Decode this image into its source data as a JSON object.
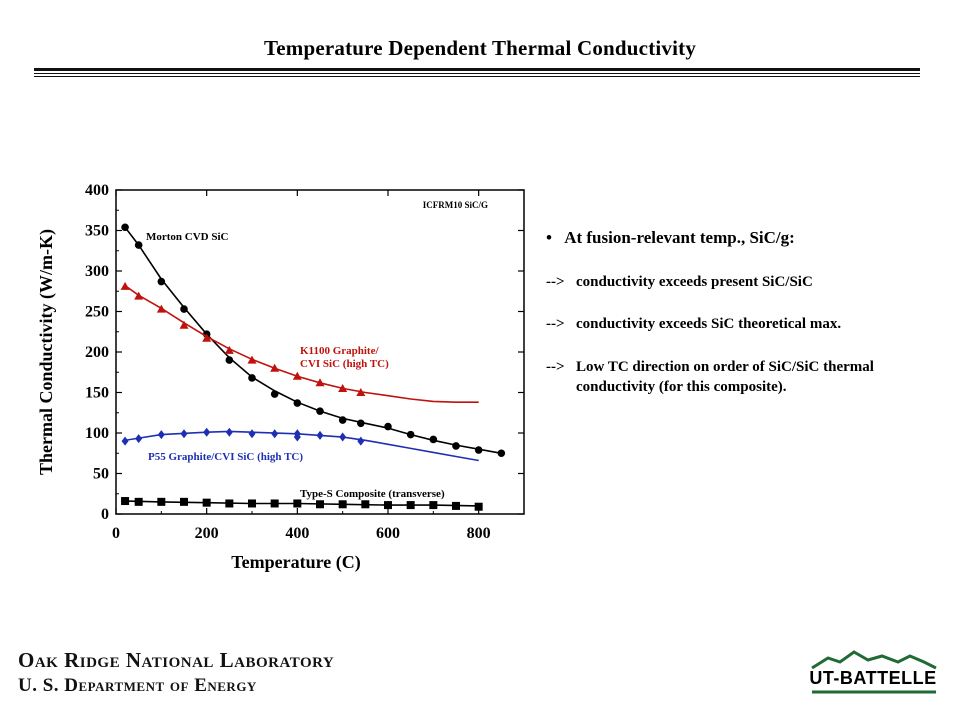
{
  "slide": {
    "title": "Temperature Dependent Thermal Conductivity",
    "bullet_marker": "•",
    "bullet_glyph": "",
    "bullet_main": "At fusion-relevant temp., SiC/g:",
    "arrow": "-->",
    "arrow_items": [
      "conductivity exceeds present SiC/SiC",
      "conductivity exceeds SiC theoretical max.",
      "Low TC direction on order of SiC/SiC thermal conductivity (for this composite)."
    ],
    "footer_line1": "Oak Ridge National Laboratory",
    "footer_line2": "U. S. Department of Energy",
    "logo_text": "UT-BATTELLE"
  },
  "chart_data": {
    "type": "line",
    "xlabel": "Temperature (C)",
    "ylabel": "Thermal Conductivity (W/m-K)",
    "xlim": [
      0,
      900
    ],
    "ylim": [
      0,
      400
    ],
    "xticks": [
      0,
      200,
      400,
      600,
      800
    ],
    "yticks": [
      0,
      50,
      100,
      150,
      200,
      250,
      300,
      350,
      400
    ],
    "corner_label": "ICFRM10 SiC/G",
    "grid": false,
    "series": [
      {
        "name": "Morton CVD SiC",
        "color": "#000000",
        "marker": "circle",
        "points": [
          [
            20,
            354
          ],
          [
            50,
            332
          ],
          [
            100,
            287
          ],
          [
            150,
            253
          ],
          [
            200,
            222
          ],
          [
            250,
            190
          ],
          [
            300,
            168
          ],
          [
            350,
            148
          ],
          [
            400,
            137
          ],
          [
            450,
            127
          ],
          [
            500,
            116
          ],
          [
            540,
            112
          ],
          [
            600,
            108
          ],
          [
            650,
            98
          ],
          [
            700,
            92
          ],
          [
            750,
            84
          ],
          [
            800,
            79
          ],
          [
            850,
            75
          ]
        ],
        "curve": [
          [
            20,
            354
          ],
          [
            50,
            332
          ],
          [
            100,
            290
          ],
          [
            150,
            255
          ],
          [
            200,
            222
          ],
          [
            250,
            193
          ],
          [
            300,
            169
          ],
          [
            350,
            152
          ],
          [
            400,
            138
          ],
          [
            450,
            127
          ],
          [
            500,
            118
          ],
          [
            550,
            112
          ],
          [
            600,
            106
          ],
          [
            650,
            98
          ],
          [
            700,
            91
          ],
          [
            750,
            85
          ],
          [
            800,
            80
          ],
          [
            850,
            75
          ]
        ]
      },
      {
        "name": "K1100 Graphite/ CVI SiC (high TC)",
        "color": "#c0120d",
        "marker": "triangle",
        "points": [
          [
            20,
            281
          ],
          [
            50,
            269
          ],
          [
            100,
            253
          ],
          [
            150,
            233
          ],
          [
            200,
            217
          ],
          [
            250,
            202
          ],
          [
            300,
            190
          ],
          [
            350,
            180
          ],
          [
            400,
            170
          ],
          [
            450,
            162
          ],
          [
            500,
            155
          ],
          [
            540,
            150
          ]
        ],
        "curve": [
          [
            20,
            282
          ],
          [
            50,
            270
          ],
          [
            100,
            254
          ],
          [
            150,
            236
          ],
          [
            200,
            219
          ],
          [
            250,
            204
          ],
          [
            300,
            191
          ],
          [
            350,
            180
          ],
          [
            400,
            170
          ],
          [
            450,
            162
          ],
          [
            500,
            155
          ],
          [
            550,
            150
          ],
          [
            600,
            146
          ],
          [
            650,
            142
          ],
          [
            700,
            139
          ],
          [
            750,
            138
          ],
          [
            800,
            138
          ]
        ]
      },
      {
        "name": "P55 Graphite/CVI SiC (high TC)",
        "color": "#1e2fb4",
        "marker": "diamond",
        "points": [
          [
            20,
            90
          ],
          [
            50,
            93
          ],
          [
            100,
            98
          ],
          [
            150,
            99
          ],
          [
            200,
            101
          ],
          [
            250,
            101
          ],
          [
            300,
            99
          ],
          [
            350,
            99
          ],
          [
            400,
            99
          ],
          [
            400,
            95
          ],
          [
            450,
            97
          ],
          [
            500,
            95
          ],
          [
            540,
            90
          ]
        ],
        "curve": [
          [
            20,
            91
          ],
          [
            100,
            98
          ],
          [
            200,
            101
          ],
          [
            250,
            102
          ],
          [
            300,
            101
          ],
          [
            400,
            99
          ],
          [
            500,
            95
          ],
          [
            550,
            91
          ],
          [
            600,
            86
          ],
          [
            650,
            81
          ],
          [
            700,
            76
          ],
          [
            750,
            71
          ],
          [
            800,
            66
          ]
        ]
      },
      {
        "name": "Type-S Composite (transverse)",
        "color": "#000000",
        "marker": "square",
        "points": [
          [
            20,
            16
          ],
          [
            50,
            15
          ],
          [
            100,
            15
          ],
          [
            150,
            15
          ],
          [
            200,
            14
          ],
          [
            250,
            13
          ],
          [
            300,
            13
          ],
          [
            350,
            13
          ],
          [
            400,
            13
          ],
          [
            450,
            12
          ],
          [
            500,
            12
          ],
          [
            550,
            12
          ],
          [
            600,
            11
          ],
          [
            650,
            11
          ],
          [
            700,
            11
          ],
          [
            750,
            10
          ],
          [
            800,
            9
          ]
        ],
        "curve": [
          [
            20,
            16
          ],
          [
            100,
            15
          ],
          [
            200,
            14
          ],
          [
            300,
            13
          ],
          [
            400,
            13
          ],
          [
            500,
            12
          ],
          [
            600,
            11
          ],
          [
            700,
            11
          ],
          [
            800,
            10
          ]
        ]
      }
    ]
  }
}
